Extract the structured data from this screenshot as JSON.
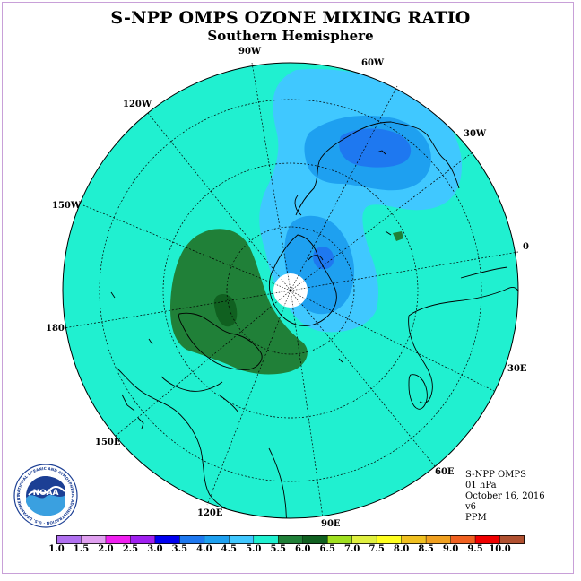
{
  "title": "S-NPP OMPS OZONE MIXING RATIO",
  "subtitle": "Southern Hemisphere",
  "longitude_labels": [
    {
      "key": "90w",
      "text": "90W"
    },
    {
      "key": "60w",
      "text": "60W"
    },
    {
      "key": "120w",
      "text": "120W"
    },
    {
      "key": "30w",
      "text": "30W"
    },
    {
      "key": "150w",
      "text": "150W"
    },
    {
      "key": "0",
      "text": "0"
    },
    {
      "key": "180",
      "text": "180"
    },
    {
      "key": "30e",
      "text": "30E"
    },
    {
      "key": "150e",
      "text": "150E"
    },
    {
      "key": "60e",
      "text": "60E"
    },
    {
      "key": "120e",
      "text": "120E"
    },
    {
      "key": "90e",
      "text": "90E"
    }
  ],
  "info": {
    "instrument": "S-NPP OMPS",
    "level": "01 hPa",
    "date": "October 16, 2016",
    "version": "v6",
    "units": "PPM"
  },
  "colorbar": {
    "ticks": [
      "1.0",
      "1.5",
      "2.0",
      "2.5",
      "3.0",
      "3.5",
      "4.0",
      "4.5",
      "5.0",
      "5.5",
      "6.0",
      "6.5",
      "7.0",
      "7.5",
      "8.0",
      "8.5",
      "9.0",
      "9.5",
      "10.0"
    ],
    "colors": [
      "#b070f0",
      "#e0a0f0",
      "#f020f0",
      "#a020f0",
      "#0000f0",
      "#1e78f0",
      "#1ea0f0",
      "#40c8ff",
      "#20f0d0",
      "#208038",
      "#106020",
      "#a0e020",
      "#e0f040",
      "#ffff20",
      "#f0c020",
      "#f0a020",
      "#f06020",
      "#f00000",
      "#b05030"
    ]
  },
  "logo": {
    "text": "NOAA",
    "ring_text": "NATIONAL OCEANIC AND ATMOSPHERIC ADMINISTRATION · U.S. DEPARTMENT OF COMMERCE"
  },
  "colors": {
    "background_field": "#20f0d0",
    "low_blue_1": "#40c8ff",
    "low_blue_2": "#1ea0f0",
    "low_blue_3": "#1e78f0",
    "high_green_1": "#208038",
    "high_green_2": "#106020"
  }
}
